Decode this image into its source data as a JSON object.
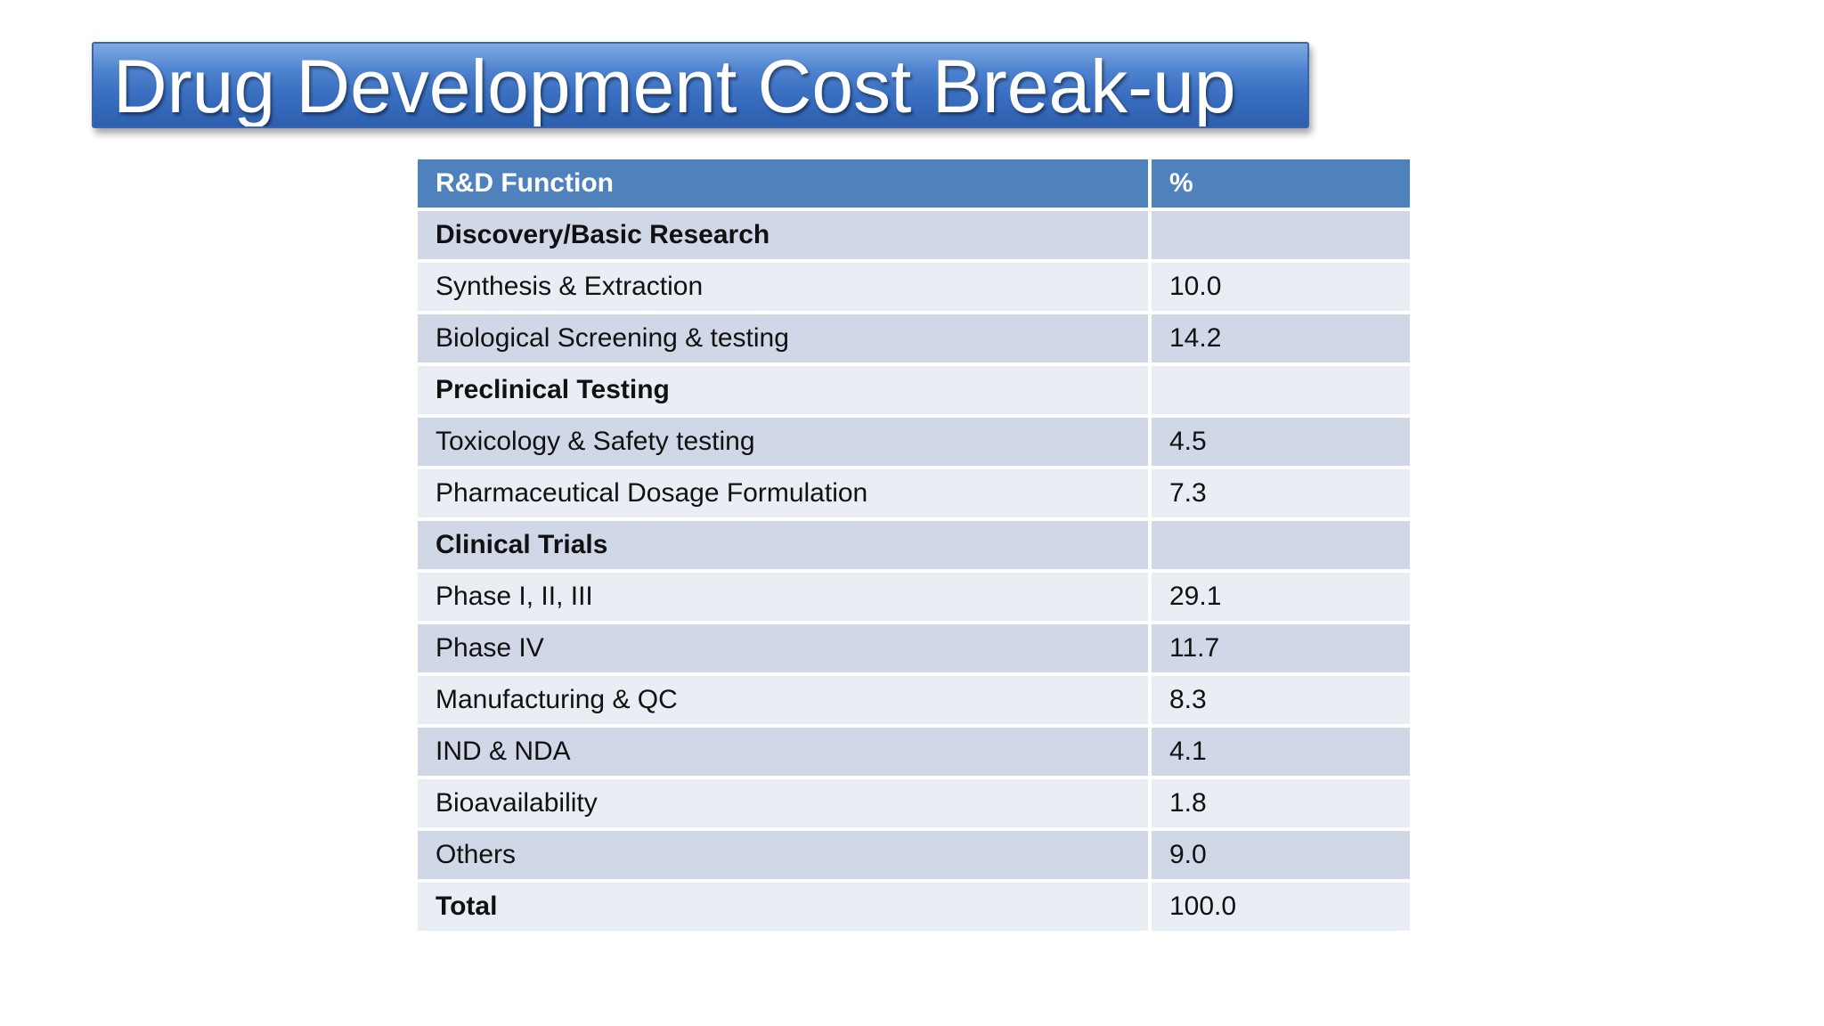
{
  "title": "Drug Development Cost Break-up",
  "table": {
    "headers": {
      "function": "R&D Function",
      "percent": "%"
    },
    "rows": [
      {
        "function": "Discovery/Basic Research",
        "percent": "",
        "bold": true
      },
      {
        "function": "Synthesis & Extraction",
        "percent": "10.0",
        "bold": false
      },
      {
        "function": "Biological Screening & testing",
        "percent": "14.2",
        "bold": false
      },
      {
        "function": "Preclinical Testing",
        "percent": "",
        "bold": true
      },
      {
        "function": "Toxicology & Safety testing",
        "percent": "4.5",
        "bold": false
      },
      {
        "function": "Pharmaceutical Dosage Formulation",
        "percent": "7.3",
        "bold": false
      },
      {
        "function": "Clinical Trials",
        "percent": "",
        "bold": true
      },
      {
        "function": "Phase I, II, III",
        "percent": "29.1",
        "bold": false
      },
      {
        "function": "Phase IV",
        "percent": "11.7",
        "bold": false
      },
      {
        "function": "Manufacturing & QC",
        "percent": "8.3",
        "bold": false
      },
      {
        "function": "IND & NDA",
        "percent": "4.1",
        "bold": false
      },
      {
        "function": "Bioavailability",
        "percent": "1.8",
        "bold": false
      },
      {
        "function": "Others",
        "percent": "9.0",
        "bold": false
      },
      {
        "function": "Total",
        "percent": "100.0",
        "bold": true
      }
    ]
  },
  "colors": {
    "header_bg": "#4f81bd",
    "row_dark": "#d0d8e8",
    "row_light": "#e9edf4",
    "title_banner": "#3a6fc1"
  }
}
